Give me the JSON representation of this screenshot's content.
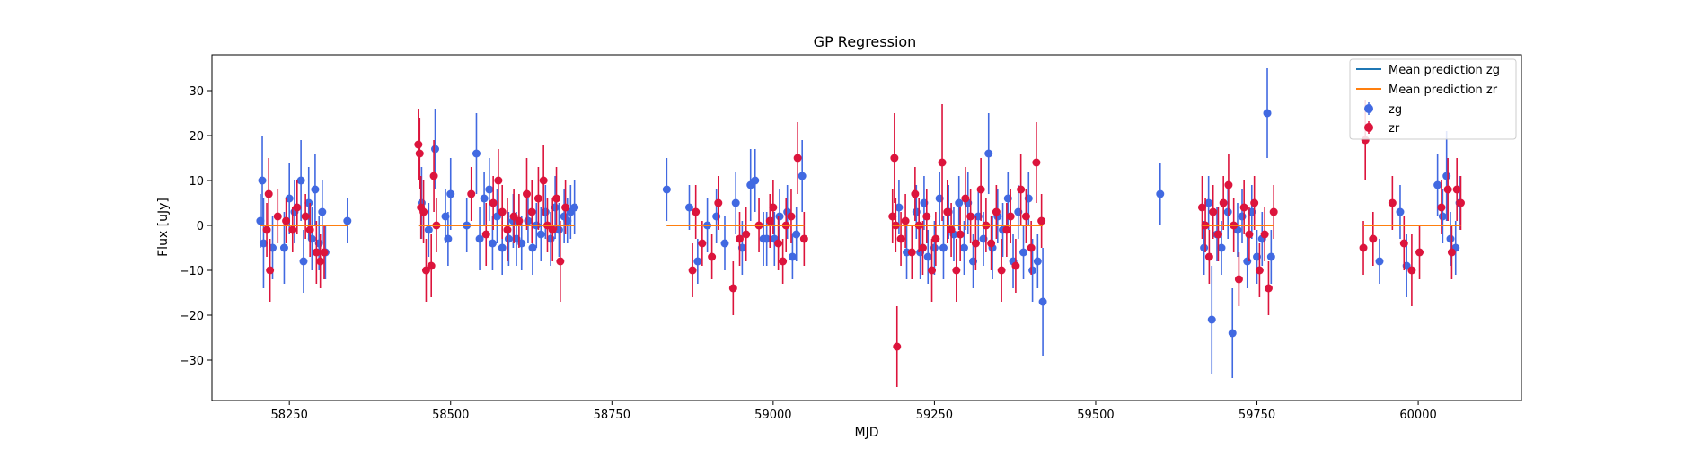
{
  "chart_data": {
    "type": "scatter",
    "title": "GP Regression",
    "xlabel": "MJD",
    "ylabel": "Flux [uJy]",
    "xlim": [
      58130,
      60160
    ],
    "ylim": [
      -39,
      38
    ],
    "xticks": [
      58250,
      58500,
      58750,
      59000,
      59250,
      59500,
      59750,
      60000
    ],
    "yticks": [
      -30,
      -20,
      -10,
      0,
      10,
      20,
      30
    ],
    "grid": false,
    "legend_position": "top-right",
    "mean_lines": [
      {
        "name": "Mean prediction zg",
        "color": "#1f77b4",
        "y": 0
      },
      {
        "name": "Mean prediction zr",
        "color": "#ff7f0e",
        "y": 0
      }
    ],
    "series": [
      {
        "name": "zg",
        "color": "#4169e1",
        "points": [
          [
            58205,
            1,
            6
          ],
          [
            58208,
            10,
            10
          ],
          [
            58210,
            -4,
            10
          ],
          [
            58224,
            -5,
            7
          ],
          [
            58242,
            -5,
            8
          ],
          [
            58250,
            6,
            8
          ],
          [
            58258,
            3,
            7
          ],
          [
            58268,
            10,
            9
          ],
          [
            58272,
            -8,
            7
          ],
          [
            58280,
            5,
            8
          ],
          [
            58285,
            -3,
            7
          ],
          [
            58290,
            8,
            8
          ],
          [
            58296,
            -4,
            6
          ],
          [
            58301,
            3,
            7
          ],
          [
            58306,
            -6,
            6
          ],
          [
            58340,
            1,
            5
          ],
          [
            58455,
            5,
            8
          ],
          [
            58466,
            -1,
            6
          ],
          [
            58476,
            17,
            9
          ],
          [
            58492,
            2,
            6
          ],
          [
            58496,
            -3,
            6
          ],
          [
            58500,
            7,
            8
          ],
          [
            58525,
            0,
            6
          ],
          [
            58540,
            16,
            9
          ],
          [
            58545,
            -3,
            7
          ],
          [
            58552,
            6,
            6
          ],
          [
            58560,
            8,
            7
          ],
          [
            58565,
            -4,
            6
          ],
          [
            58572,
            2,
            6
          ],
          [
            58580,
            -5,
            6
          ],
          [
            58590,
            -3,
            6
          ],
          [
            58597,
            1,
            6
          ],
          [
            58602,
            -3,
            6
          ],
          [
            58610,
            -4,
            6
          ],
          [
            58620,
            1,
            5
          ],
          [
            58627,
            -5,
            6
          ],
          [
            58633,
            0,
            5
          ],
          [
            58640,
            -2,
            6
          ],
          [
            58647,
            3,
            6
          ],
          [
            58655,
            -3,
            6
          ],
          [
            58662,
            4,
            7
          ],
          [
            58668,
            -1,
            6
          ],
          [
            58676,
            2,
            6
          ],
          [
            58681,
            1,
            5
          ],
          [
            58686,
            3,
            6
          ],
          [
            58692,
            4,
            6
          ],
          [
            58835,
            8,
            7
          ],
          [
            58870,
            4,
            5
          ],
          [
            58883,
            -8,
            5
          ],
          [
            58898,
            0,
            6
          ],
          [
            58912,
            2,
            6
          ],
          [
            58925,
            -4,
            6
          ],
          [
            58942,
            5,
            7
          ],
          [
            58952,
            -5,
            6
          ],
          [
            58965,
            9,
            8
          ],
          [
            58972,
            10,
            7
          ],
          [
            58985,
            -3,
            6
          ],
          [
            58990,
            -3,
            6
          ],
          [
            58996,
            1,
            6
          ],
          [
            59002,
            -3,
            6
          ],
          [
            59010,
            2,
            6
          ],
          [
            59022,
            3,
            6
          ],
          [
            59030,
            -7,
            5
          ],
          [
            59036,
            -2,
            6
          ],
          [
            59045,
            11,
            8
          ],
          [
            59195,
            4,
            6
          ],
          [
            59207,
            -6,
            6
          ],
          [
            59222,
            3,
            6
          ],
          [
            59228,
            -6,
            6
          ],
          [
            59234,
            5,
            6
          ],
          [
            59240,
            -7,
            6
          ],
          [
            59250,
            -5,
            6
          ],
          [
            59258,
            6,
            6
          ],
          [
            59264,
            -5,
            7
          ],
          [
            59272,
            3,
            6
          ],
          [
            59280,
            -2,
            6
          ],
          [
            59288,
            5,
            6
          ],
          [
            59296,
            -5,
            6
          ],
          [
            59302,
            5,
            7
          ],
          [
            59310,
            -8,
            6
          ],
          [
            59318,
            2,
            6
          ],
          [
            59326,
            -3,
            6
          ],
          [
            59334,
            16,
            9
          ],
          [
            59340,
            -5,
            7
          ],
          [
            59348,
            2,
            6
          ],
          [
            59356,
            -1,
            6
          ],
          [
            59364,
            6,
            6
          ],
          [
            59372,
            -8,
            6
          ],
          [
            59380,
            3,
            6
          ],
          [
            59388,
            -6,
            6
          ],
          [
            59396,
            6,
            6
          ],
          [
            59402,
            -10,
            7
          ],
          [
            59410,
            -8,
            6
          ],
          [
            59418,
            -17,
            12
          ],
          [
            59600,
            7,
            7
          ],
          [
            59668,
            -5,
            6
          ],
          [
            59675,
            5,
            6
          ],
          [
            59680,
            -21,
            12
          ],
          [
            59688,
            -2,
            6
          ],
          [
            59695,
            -5,
            6
          ],
          [
            59705,
            3,
            6
          ],
          [
            59712,
            -24,
            10
          ],
          [
            59720,
            -1,
            6
          ],
          [
            59727,
            2,
            6
          ],
          [
            59735,
            -8,
            6
          ],
          [
            59742,
            3,
            6
          ],
          [
            59750,
            -7,
            6
          ],
          [
            59758,
            -3,
            6
          ],
          [
            59766,
            25,
            10
          ],
          [
            59772,
            -7,
            6
          ],
          [
            59940,
            -8,
            5
          ],
          [
            59972,
            3,
            6
          ],
          [
            59982,
            -9,
            7
          ],
          [
            60030,
            9,
            7
          ],
          [
            60038,
            2,
            6
          ],
          [
            60044,
            11,
            10
          ],
          [
            60050,
            -3,
            6
          ],
          [
            60058,
            -5,
            6
          ],
          [
            60064,
            5,
            6
          ]
        ]
      },
      {
        "name": "zr",
        "color": "#dc143c",
        "points": [
          [
            58215,
            -1,
            6
          ],
          [
            58218,
            7,
            8
          ],
          [
            58220,
            -10,
            7
          ],
          [
            58232,
            2,
            6
          ],
          [
            58245,
            1,
            5
          ],
          [
            58255,
            -1,
            5
          ],
          [
            58262,
            4,
            6
          ],
          [
            58275,
            2,
            5
          ],
          [
            58282,
            -1,
            6
          ],
          [
            58292,
            -6,
            7
          ],
          [
            58298,
            -8,
            6
          ],
          [
            58304,
            -6,
            6
          ],
          [
            58450,
            18,
            8
          ],
          [
            58452,
            16,
            8
          ],
          [
            58454,
            4,
            7
          ],
          [
            58458,
            3,
            7
          ],
          [
            58462,
            -10,
            7
          ],
          [
            58470,
            -9,
            7
          ],
          [
            58474,
            11,
            8
          ],
          [
            58478,
            0,
            6
          ],
          [
            58532,
            7,
            6
          ],
          [
            58555,
            -2,
            7
          ],
          [
            58566,
            5,
            6
          ],
          [
            58574,
            10,
            7
          ],
          [
            58580,
            3,
            6
          ],
          [
            58588,
            -1,
            7
          ],
          [
            58598,
            2,
            6
          ],
          [
            58606,
            1,
            6
          ],
          [
            58618,
            7,
            8
          ],
          [
            58626,
            3,
            7
          ],
          [
            58636,
            6,
            7
          ],
          [
            58644,
            10,
            8
          ],
          [
            58650,
            0,
            6
          ],
          [
            58658,
            -1,
            7
          ],
          [
            58664,
            6,
            7
          ],
          [
            58670,
            -8,
            9
          ],
          [
            58678,
            4,
            6
          ],
          [
            58875,
            -10,
            6
          ],
          [
            58880,
            3,
            6
          ],
          [
            58890,
            -4,
            5
          ],
          [
            58905,
            -7,
            5
          ],
          [
            58915,
            5,
            6
          ],
          [
            58938,
            -14,
            6
          ],
          [
            58948,
            -3,
            6
          ],
          [
            58958,
            -2,
            6
          ],
          [
            58978,
            0,
            6
          ],
          [
            58995,
            1,
            6
          ],
          [
            59000,
            4,
            6
          ],
          [
            59008,
            -4,
            6
          ],
          [
            59015,
            -8,
            5
          ],
          [
            59020,
            0,
            6
          ],
          [
            59028,
            2,
            6
          ],
          [
            59038,
            15,
            8
          ],
          [
            59048,
            -3,
            6
          ],
          [
            59185,
            2,
            6
          ],
          [
            59188,
            15,
            10
          ],
          [
            59190,
            0,
            6
          ],
          [
            59192,
            -27,
            9
          ],
          [
            59198,
            -3,
            6
          ],
          [
            59205,
            1,
            6
          ],
          [
            59215,
            -6,
            6
          ],
          [
            59220,
            7,
            6
          ],
          [
            59226,
            0,
            6
          ],
          [
            59232,
            -5,
            6
          ],
          [
            59238,
            2,
            6
          ],
          [
            59246,
            -10,
            7
          ],
          [
            59252,
            -3,
            6
          ],
          [
            59262,
            14,
            13
          ],
          [
            59270,
            3,
            7
          ],
          [
            59276,
            -1,
            6
          ],
          [
            59284,
            -10,
            7
          ],
          [
            59290,
            -2,
            6
          ],
          [
            59298,
            6,
            7
          ],
          [
            59306,
            2,
            6
          ],
          [
            59314,
            -4,
            6
          ],
          [
            59322,
            8,
            7
          ],
          [
            59330,
            0,
            6
          ],
          [
            59338,
            -4,
            6
          ],
          [
            59346,
            3,
            6
          ],
          [
            59354,
            -10,
            7
          ],
          [
            59362,
            -1,
            6
          ],
          [
            59368,
            2,
            6
          ],
          [
            59376,
            -9,
            6
          ],
          [
            59384,
            8,
            8
          ],
          [
            59392,
            2,
            6
          ],
          [
            59400,
            -5,
            6
          ],
          [
            59408,
            14,
            9
          ],
          [
            59416,
            1,
            6
          ],
          [
            59665,
            4,
            7
          ],
          [
            59670,
            0,
            6
          ],
          [
            59676,
            -7,
            6
          ],
          [
            59682,
            3,
            6
          ],
          [
            59690,
            -2,
            6
          ],
          [
            59698,
            5,
            6
          ],
          [
            59706,
            9,
            7
          ],
          [
            59714,
            0,
            6
          ],
          [
            59722,
            -12,
            6
          ],
          [
            59730,
            4,
            6
          ],
          [
            59738,
            -2,
            6
          ],
          [
            59746,
            5,
            6
          ],
          [
            59754,
            -10,
            6
          ],
          [
            59762,
            -2,
            6
          ],
          [
            59768,
            -14,
            6
          ],
          [
            59776,
            3,
            6
          ],
          [
            59915,
            -5,
            6
          ],
          [
            59918,
            19,
            9
          ],
          [
            59930,
            -3,
            6
          ],
          [
            59960,
            5,
            6
          ],
          [
            59978,
            -4,
            6
          ],
          [
            59990,
            -10,
            8
          ],
          [
            60002,
            -6,
            6
          ],
          [
            60036,
            4,
            6
          ],
          [
            60046,
            8,
            7
          ],
          [
            60052,
            -6,
            6
          ],
          [
            60060,
            8,
            7
          ],
          [
            60066,
            5,
            6
          ]
        ]
      }
    ]
  }
}
